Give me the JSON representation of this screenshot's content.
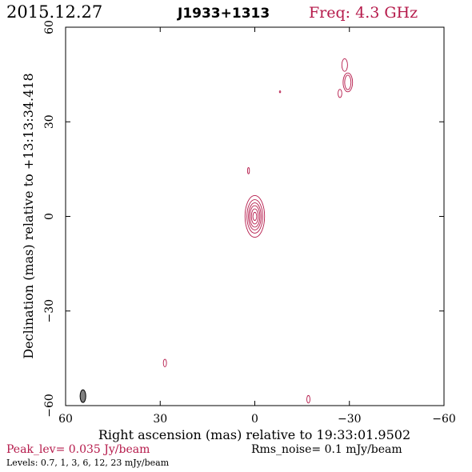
{
  "header": {
    "date": "2015.12.27",
    "source": "J1933+1313",
    "freq": "Freq: 4.3 GHz"
  },
  "footer": {
    "peak": "Peak_lev=  0.035 Jy/beam",
    "rms": "Rms_noise=   0.1 mJy/beam",
    "levels": "Levels: 0.7,    1,    3,    6,   12,   23 mJy/beam"
  },
  "colors": {
    "contour": "#b5194a",
    "header_date": "#000000",
    "header_source": "#000000",
    "header_freq": "#b5194a",
    "peak_text": "#b5194a",
    "beam_fill": "#808080"
  },
  "chart_data": {
    "type": "contour",
    "xlabel": "Right ascension (mas) relative to 19:33:01.9502",
    "ylabel": "Declination (mas) relative to +13:13:34.418",
    "xlim": [
      60,
      -60
    ],
    "ylim": [
      -60,
      60
    ],
    "xticks": [
      60,
      30,
      0,
      -30,
      -60
    ],
    "yticks": [
      60,
      30,
      0,
      -30,
      -60
    ],
    "x_tick_labels": [
      "60",
      "30",
      "0",
      "−30",
      "−60"
    ],
    "y_tick_labels": [
      "60",
      "30",
      "0",
      "−30",
      "−60"
    ],
    "contour_levels_mJy": [
      0.7,
      1,
      3,
      6,
      12,
      23
    ],
    "peak_Jy_per_beam": 0.035,
    "rms_noise_mJy_per_beam": 0.1,
    "components": [
      {
        "name": "core",
        "x": 0,
        "y": 0,
        "rings": [
          [
            0.6,
            1.3
          ],
          [
            1.1,
            2.4
          ],
          [
            1.6,
            3.4
          ],
          [
            2.0,
            4.3
          ],
          [
            2.5,
            5.3
          ],
          [
            3.1,
            6.6
          ]
        ]
      },
      {
        "name": "jet-north",
        "x": 2.0,
        "y": 14.5,
        "rings": [
          [
            0.3,
            1.0
          ]
        ]
      },
      {
        "name": "northwest-1",
        "x": -29.5,
        "y": 42.5,
        "rings": [
          [
            1.0,
            2.3
          ],
          [
            1.5,
            3.0
          ]
        ]
      },
      {
        "name": "northwest-2",
        "x": -28.5,
        "y": 48.0,
        "rings": [
          [
            0.9,
            2.0
          ]
        ]
      },
      {
        "name": "northwest-3",
        "x": -27.0,
        "y": 39.0,
        "rings": [
          [
            0.6,
            1.3
          ]
        ]
      },
      {
        "name": "spot-1",
        "x": -8.0,
        "y": 39.5,
        "rings": [
          [
            0.2,
            0.3
          ]
        ]
      },
      {
        "name": "southeast",
        "x": 28.5,
        "y": -46.5,
        "rings": [
          [
            0.5,
            1.2
          ]
        ]
      },
      {
        "name": "southwest",
        "x": -17.0,
        "y": -58.0,
        "rings": [
          [
            0.5,
            1.2
          ]
        ]
      }
    ],
    "beam": {
      "x": 54.5,
      "y": -57.0,
      "minor_mas": 1.5,
      "major_mas": 4.0,
      "pa_deg": 0
    },
    "grid": false
  }
}
